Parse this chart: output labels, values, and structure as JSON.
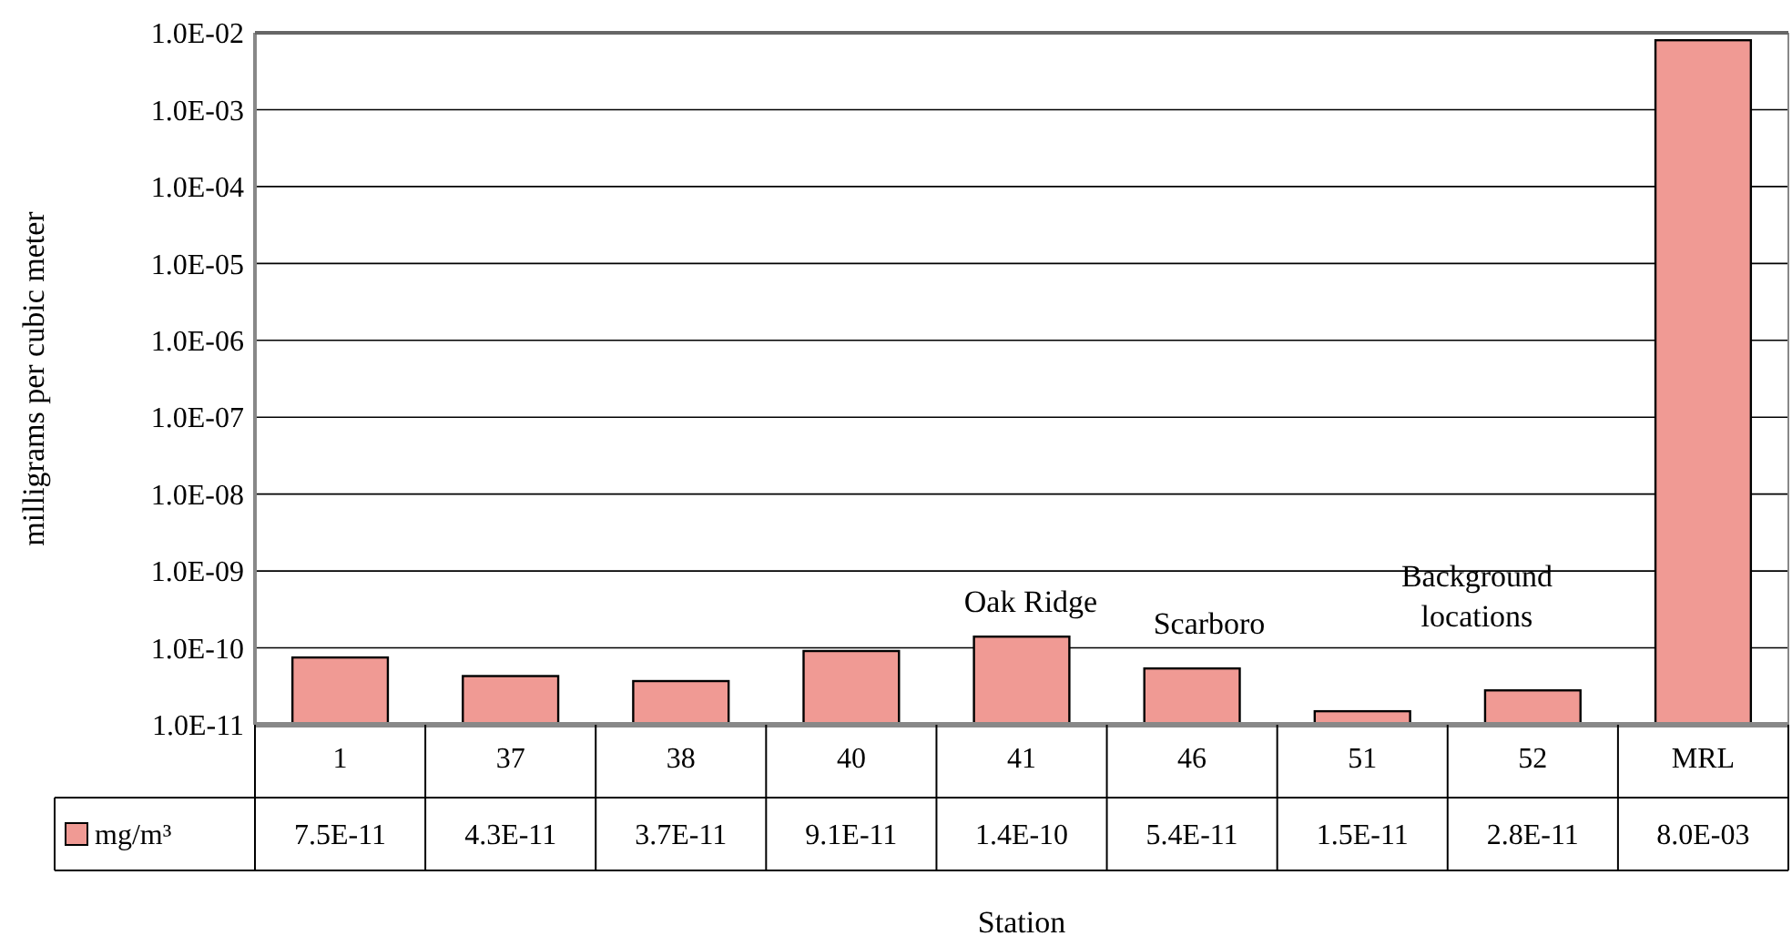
{
  "chart_data": {
    "type": "bar",
    "xlabel": "Station",
    "ylabel": "milligrams per cubic meter",
    "categories": [
      "1",
      "37",
      "38",
      "40",
      "41",
      "46",
      "51",
      "52",
      "MRL"
    ],
    "series": [
      {
        "name": "mg/m³",
        "color": "#f09a94",
        "values": [
          7.5e-11,
          4.3e-11,
          3.7e-11,
          9.1e-11,
          1.4e-10,
          5.4e-11,
          1.5e-11,
          2.8e-11,
          0.008
        ],
        "value_labels": [
          "7.5E-11",
          "4.3E-11",
          "3.7E-11",
          "9.1E-11",
          "1.4E-10",
          "5.4E-11",
          "1.5E-11",
          "2.8E-11",
          "8.0E-03"
        ]
      }
    ],
    "log": true,
    "ylim": [
      1e-11,
      0.01
    ],
    "yticks": [
      {
        "value": 1e-11,
        "label": "1.0E-11"
      },
      {
        "value": 1e-10,
        "label": "1.0E-10"
      },
      {
        "value": 1e-09,
        "label": "1.0E-09"
      },
      {
        "value": 1e-08,
        "label": "1.0E-08"
      },
      {
        "value": 1e-07,
        "label": "1.0E-07"
      },
      {
        "value": 1e-06,
        "label": "1.0E-06"
      },
      {
        "value": 1e-05,
        "label": "1.0E-05"
      },
      {
        "value": 0.0001,
        "label": "1.0E-04"
      },
      {
        "value": 0.001,
        "label": "1.0E-03"
      },
      {
        "value": 0.01,
        "label": "1.0E-02"
      }
    ],
    "grid": "y",
    "legend": "bottom",
    "annotations": [
      "Oak Ridge",
      "Scarboro",
      "Background locations"
    ]
  }
}
